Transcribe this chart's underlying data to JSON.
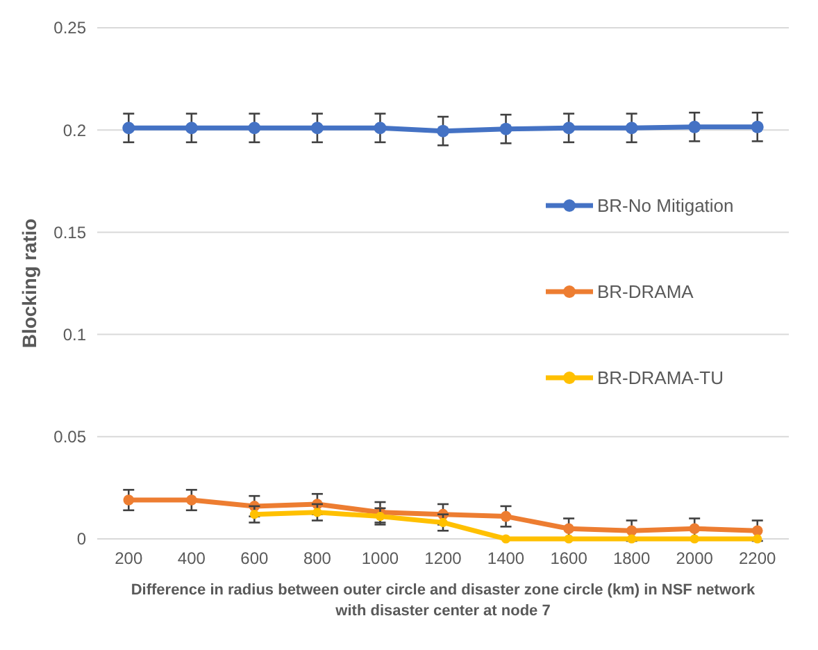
{
  "chart_data": {
    "type": "line",
    "xlabel": "Difference in radius between outer circle and disaster zone circle (km) in NSF network with disaster center at node 7",
    "ylabel": "Blocking ratio",
    "categories": [
      "200",
      "400",
      "600",
      "800",
      "1000",
      "1200",
      "1400",
      "1600",
      "1800",
      "2000",
      "2200"
    ],
    "ylim": [
      0,
      0.25
    ],
    "yticks": [
      0,
      0.05,
      0.1,
      0.15,
      0.2,
      0.25
    ],
    "grid": "y",
    "legend": "right",
    "marker": "circle",
    "series": [
      {
        "name": "BR-No Mitigation",
        "color": "#4472c4",
        "values": [
          0.201,
          0.201,
          0.201,
          0.201,
          0.201,
          0.1995,
          0.2005,
          0.201,
          0.201,
          0.2015,
          0.2015
        ],
        "errors": [
          0.007,
          0.007,
          0.007,
          0.007,
          0.007,
          0.007,
          0.007,
          0.007,
          0.007,
          0.007,
          0.007
        ]
      },
      {
        "name": "BR-DRAMA",
        "color": "#ed7d31",
        "values": [
          0.019,
          0.019,
          0.016,
          0.017,
          0.013,
          0.012,
          0.011,
          0.005,
          0.004,
          0.005,
          0.004
        ],
        "errors": [
          0.005,
          0.005,
          0.005,
          0.005,
          0.005,
          0.005,
          0.005,
          0.005,
          0.005,
          0.005,
          0.005
        ]
      },
      {
        "name": "BR-DRAMA-TU",
        "color": "#ffc000",
        "values": [
          null,
          null,
          0.012,
          0.013,
          0.011,
          0.008,
          0,
          0,
          0,
          0,
          0
        ],
        "errors": [
          null,
          null,
          0.004,
          0.004,
          0.004,
          0.004,
          null,
          null,
          null,
          null,
          null
        ]
      }
    ]
  }
}
